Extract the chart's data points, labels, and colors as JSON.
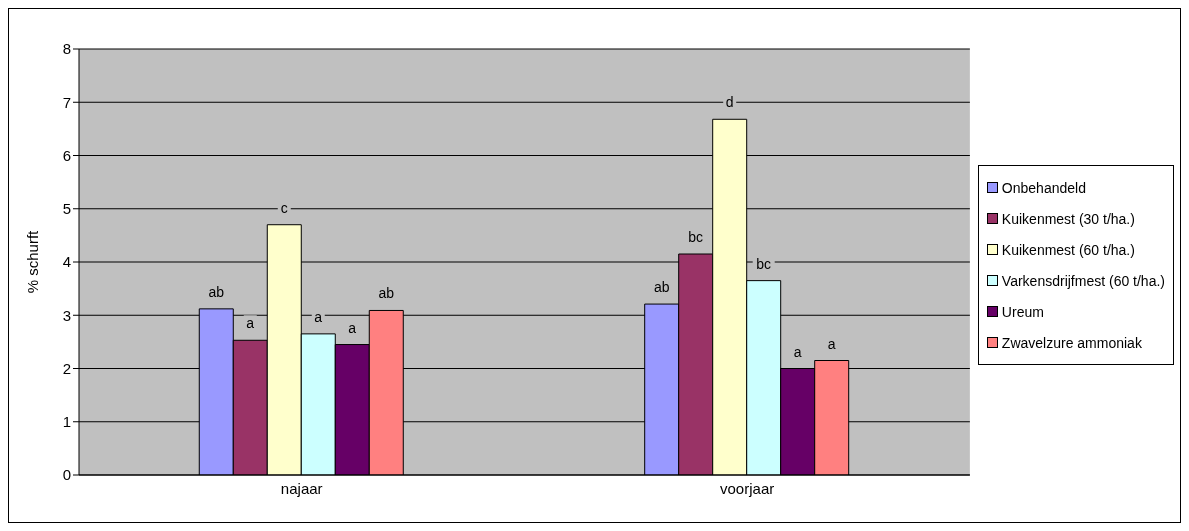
{
  "chart_data": {
    "type": "bar",
    "ylabel": "% schurft",
    "categories": [
      "najaar",
      "voorjaar"
    ],
    "series": [
      {
        "name": "Onbehandeld",
        "color": "#9999ff",
        "values": [
          3.12,
          3.21
        ],
        "value_labels": [
          "ab",
          "ab"
        ]
      },
      {
        "name": "Kuikenmest (30 t/ha.)",
        "color": "#993366",
        "values": [
          2.53,
          4.15
        ],
        "value_labels": [
          "a",
          "bc"
        ]
      },
      {
        "name": "Kuikenmest (60 t/ha.)",
        "color": "#ffffcc",
        "values": [
          4.7,
          6.68
        ],
        "value_labels": [
          "c",
          "d"
        ]
      },
      {
        "name": "Varkensdrijfmest (60 t/ha.)",
        "color": "#ccffff",
        "values": [
          2.65,
          3.65
        ],
        "value_labels": [
          "a",
          "bc"
        ]
      },
      {
        "name": "Ureum",
        "color": "#660066",
        "values": [
          2.45,
          2.0
        ],
        "value_labels": [
          "a",
          "a"
        ]
      },
      {
        "name": "Zwavelzure ammoniak",
        "color": "#ff8080",
        "values": [
          3.09,
          2.15
        ],
        "value_labels": [
          "ab",
          "a"
        ]
      }
    ],
    "ylim": [
      0,
      8
    ],
    "yticks": [
      0,
      1,
      2,
      3,
      4,
      5,
      6,
      7,
      8
    ],
    "grid": "y",
    "legend": "right"
  }
}
